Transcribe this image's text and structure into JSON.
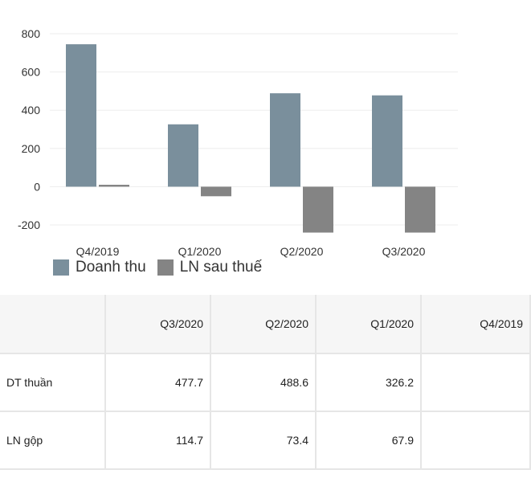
{
  "chart_data": {
    "type": "bar",
    "categories": [
      "Q4/2019",
      "Q1/2020",
      "Q2/2020",
      "Q3/2020"
    ],
    "series": [
      {
        "name": "Doanh thu",
        "color": "#7a8f9c",
        "values": [
          745,
          326.2,
          488.6,
          477.7
        ]
      },
      {
        "name": "LN sau thuế",
        "color": "#848484",
        "values": [
          10,
          -50,
          -240,
          -240
        ]
      }
    ],
    "yticks": [
      800,
      600,
      400,
      200,
      0,
      -200
    ],
    "ylim": [
      -200,
      800
    ],
    "grid": true,
    "legend_position": "bottom"
  },
  "table": {
    "columns": [
      "Q3/2020",
      "Q2/2020",
      "Q1/2020",
      "Q4/2019"
    ],
    "rows": [
      {
        "label": "DT thuần",
        "values": [
          "477.7",
          "488.6",
          "326.2",
          ""
        ]
      },
      {
        "label": "LN gộp",
        "values": [
          "114.7",
          "73.4",
          "67.9",
          ""
        ]
      }
    ]
  }
}
